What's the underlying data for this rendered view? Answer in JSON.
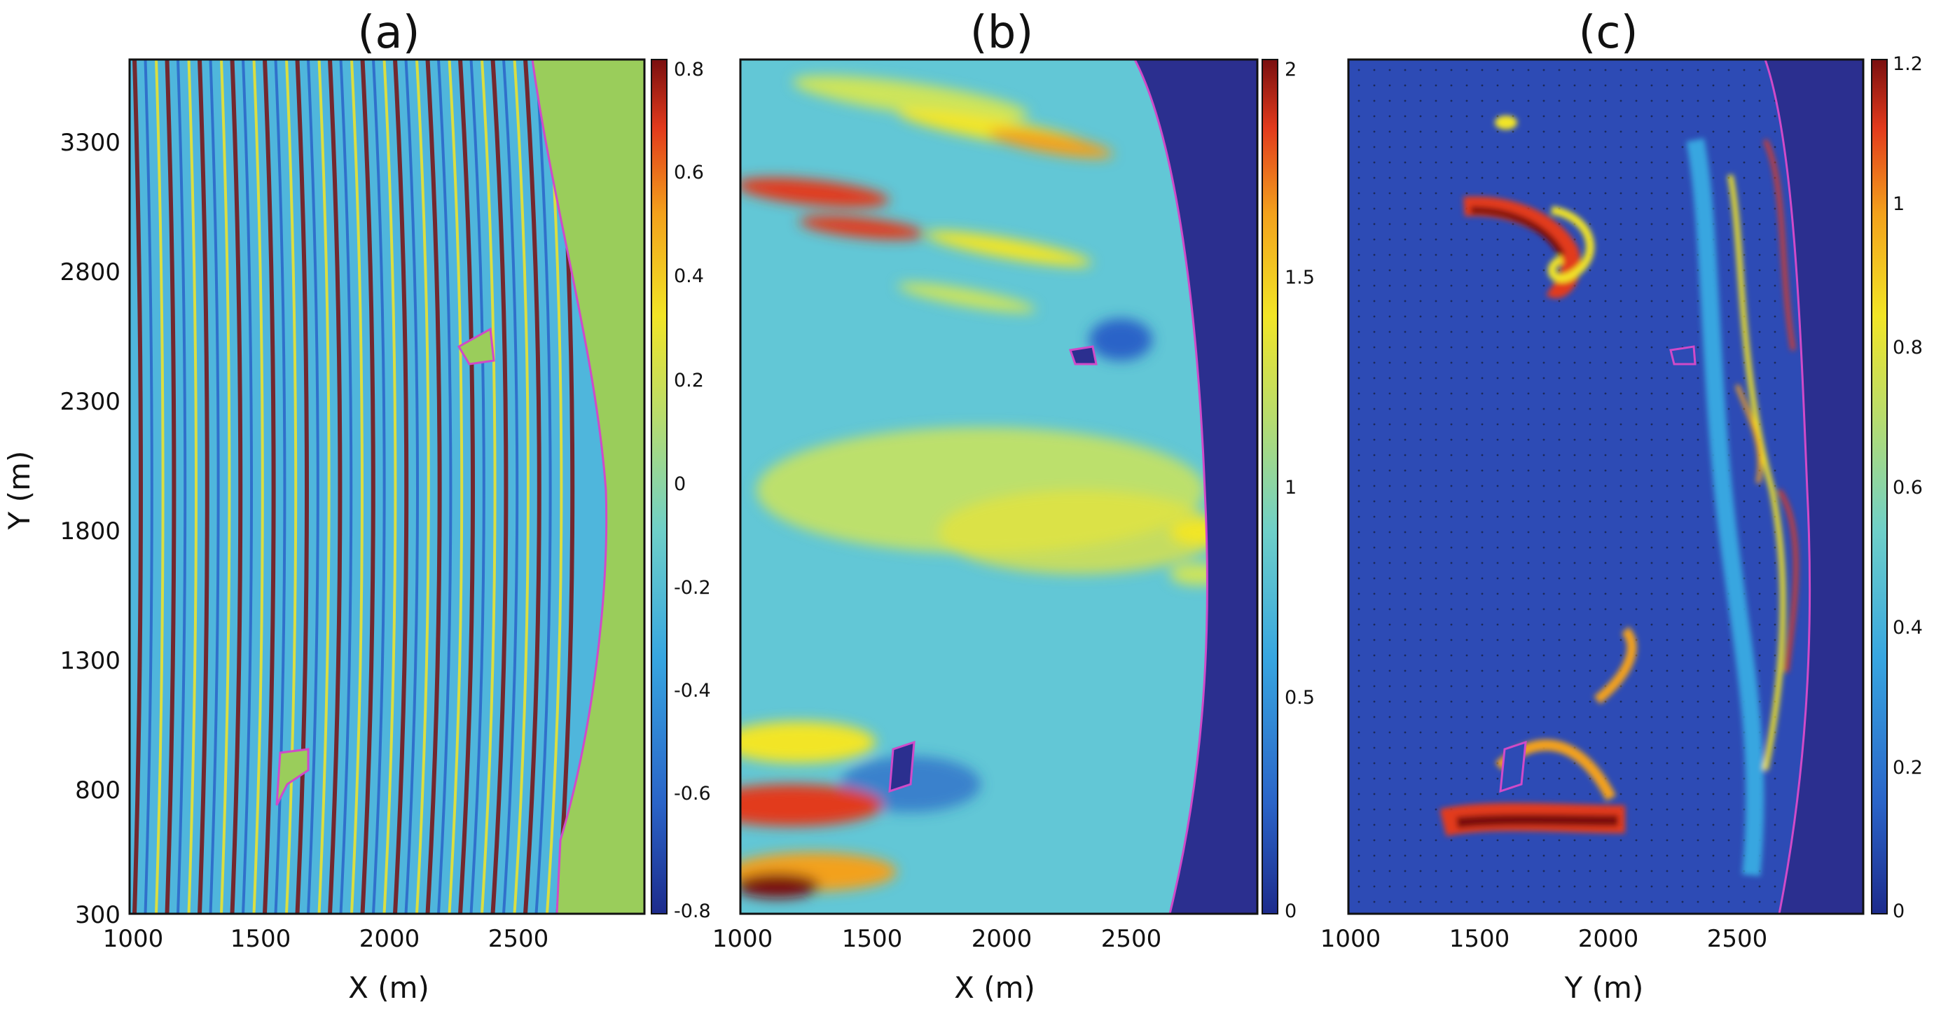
{
  "chart_data": [
    {
      "type": "heatmap",
      "panel": "(a)",
      "title": "(a)",
      "xlabel": "X (m)",
      "ylabel": "Y (m)",
      "xlim": [
        1000,
        3000
      ],
      "ylim": [
        300,
        3600
      ],
      "x_ticks": [
        1000,
        1500,
        2000,
        2500
      ],
      "y_ticks": [
        300,
        800,
        1300,
        1800,
        2300,
        2800,
        3300
      ],
      "colorbar_range": [
        -0.8,
        0.8
      ],
      "colorbar_ticks": [
        "0.8",
        "0.6",
        "0.4",
        "0.2",
        "0",
        "-0.2",
        "-0.4",
        "-0.6",
        "-0.8"
      ],
      "land_color": "#9acd5b",
      "shoreline_x_approx": 2700
    },
    {
      "type": "heatmap",
      "panel": "(b)",
      "title": "(b)",
      "xlabel": "X (m)",
      "ylabel": "",
      "xlim": [
        1000,
        3000
      ],
      "ylim": [
        300,
        3600
      ],
      "x_ticks": [
        1000,
        1500,
        2000,
        2500
      ],
      "y_ticks": [],
      "colorbar_range": [
        0,
        2
      ],
      "colorbar_ticks": [
        "2",
        "1.5",
        "1",
        "0.5",
        "0"
      ],
      "land_color": "#2b2f8f",
      "shoreline_x_approx": 2700
    },
    {
      "type": "heatmap",
      "panel": "(c)",
      "title": "(c)",
      "xlabel": "Y (m)",
      "ylabel": "",
      "xlim": [
        1000,
        3000
      ],
      "ylim": [
        300,
        3600
      ],
      "x_ticks": [
        1000,
        1500,
        2000,
        2500
      ],
      "y_ticks": [],
      "colorbar_range": [
        0,
        1.2
      ],
      "colorbar_ticks": [
        "1.2",
        "1",
        "0.8",
        "0.6",
        "0.4",
        "0.2",
        "0"
      ],
      "land_color": "#2b2f8f",
      "shoreline_x_approx": 2700
    }
  ],
  "y_tick_labels": [
    "3300",
    "2800",
    "2300",
    "1800",
    "1300",
    "800",
    "300"
  ],
  "x_tick_labels": [
    "1000",
    "1500",
    "2000",
    "2500"
  ],
  "colormap": [
    "#1d2b8c",
    "#2a64c8",
    "#37a6e0",
    "#6fd0c8",
    "#b7dc6e",
    "#f2e526",
    "#f3a11c",
    "#e23a1c",
    "#7a0f0f"
  ]
}
